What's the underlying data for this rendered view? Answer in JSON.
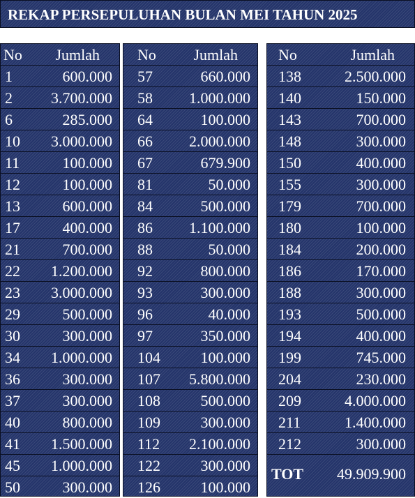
{
  "title": "REKAP PERSEPULUHAN BULAN MEI TAHUN 2025",
  "columns": {
    "no": "No",
    "amount": "Jumlah"
  },
  "panels": [
    [
      {
        "no": "1",
        "amount": "600.000"
      },
      {
        "no": "2",
        "amount": "3.700.000"
      },
      {
        "no": "6",
        "amount": "285.000"
      },
      {
        "no": "10",
        "amount": "3.000.000"
      },
      {
        "no": "11",
        "amount": "100.000"
      },
      {
        "no": "12",
        "amount": "100.000"
      },
      {
        "no": "13",
        "amount": "600.000"
      },
      {
        "no": "17",
        "amount": "400.000"
      },
      {
        "no": "21",
        "amount": "700.000"
      },
      {
        "no": "22",
        "amount": "1.200.000"
      },
      {
        "no": "23",
        "amount": "3.000.000"
      },
      {
        "no": "29",
        "amount": "500.000"
      },
      {
        "no": "30",
        "amount": "300.000"
      },
      {
        "no": "34",
        "amount": "1.000.000"
      },
      {
        "no": "36",
        "amount": "300.000"
      },
      {
        "no": "37",
        "amount": "300.000"
      },
      {
        "no": "40",
        "amount": "800.000"
      },
      {
        "no": "41",
        "amount": "1.500.000"
      },
      {
        "no": "45",
        "amount": "1.000.000"
      },
      {
        "no": "50",
        "amount": "300.000"
      }
    ],
    [
      {
        "no": "57",
        "amount": "660.000"
      },
      {
        "no": "58",
        "amount": "1.000.000"
      },
      {
        "no": "64",
        "amount": "100.000"
      },
      {
        "no": "66",
        "amount": "2.000.000"
      },
      {
        "no": "67",
        "amount": "679.900"
      },
      {
        "no": "81",
        "amount": "50.000"
      },
      {
        "no": "84",
        "amount": "500.000"
      },
      {
        "no": "86",
        "amount": "1.100.000"
      },
      {
        "no": "88",
        "amount": "50.000"
      },
      {
        "no": "92",
        "amount": "800.000"
      },
      {
        "no": "93",
        "amount": "300.000"
      },
      {
        "no": "96",
        "amount": "40.000"
      },
      {
        "no": "97",
        "amount": "350.000"
      },
      {
        "no": "104",
        "amount": "100.000"
      },
      {
        "no": "107",
        "amount": "5.800.000"
      },
      {
        "no": "108",
        "amount": "500.000"
      },
      {
        "no": "109",
        "amount": "300.000"
      },
      {
        "no": "112",
        "amount": "2.100.000"
      },
      {
        "no": "122",
        "amount": "300.000"
      },
      {
        "no": "126",
        "amount": "100.000"
      }
    ],
    [
      {
        "no": "138",
        "amount": "2.500.000"
      },
      {
        "no": "140",
        "amount": "150.000"
      },
      {
        "no": "143",
        "amount": "700.000"
      },
      {
        "no": "148",
        "amount": "300.000"
      },
      {
        "no": "150",
        "amount": "400.000"
      },
      {
        "no": "155",
        "amount": "300.000"
      },
      {
        "no": "179",
        "amount": "700.000"
      },
      {
        "no": "180",
        "amount": "100.000"
      },
      {
        "no": "184",
        "amount": "200.000"
      },
      {
        "no": "186",
        "amount": "170.000"
      },
      {
        "no": "188",
        "amount": "300.000"
      },
      {
        "no": "193",
        "amount": "500.000"
      },
      {
        "no": "194",
        "amount": "400.000"
      },
      {
        "no": "199",
        "amount": "745.000"
      },
      {
        "no": "204",
        "amount": "230.000"
      },
      {
        "no": "209",
        "amount": "4.000.000"
      },
      {
        "no": "211",
        "amount": "1.400.000"
      },
      {
        "no": "212",
        "amount": "300.000"
      }
    ]
  ],
  "total": {
    "label": "TOT",
    "value": "49.909.900"
  },
  "colors": {
    "background": "#24346a",
    "text": "#ffffff",
    "grid": "#0a0f22"
  }
}
